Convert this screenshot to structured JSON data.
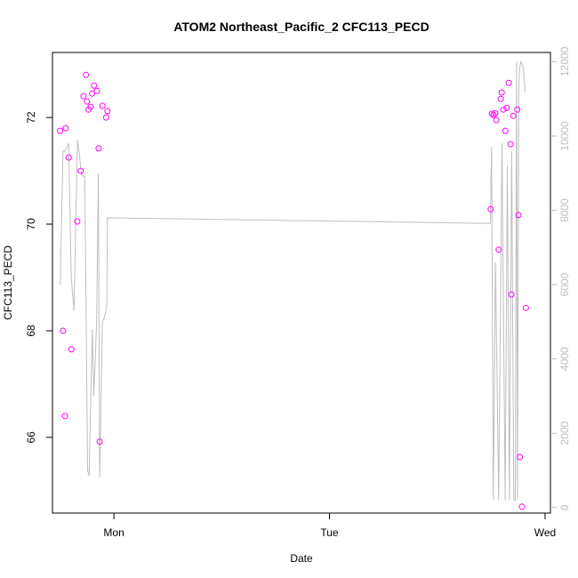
{
  "chart_data": {
    "type": "scatter",
    "title": "ATOM2 Northeast_Pacific_2 CFC113_PECD",
    "xlabel": "Date",
    "ylabel": "CFC113_PECD",
    "x_ticks": [
      "Mon",
      "Tue",
      "Wed"
    ],
    "y_ticks": [
      "66",
      "68",
      "70",
      "72"
    ],
    "y_right_ticks": [
      "0",
      "2000",
      "4000",
      "6000",
      "8000",
      "10000",
      "12000"
    ],
    "xlim": [
      -0.285,
      2.025
    ],
    "ylim": [
      64.58,
      73.22
    ],
    "y_right_lim": [
      -150,
      12250
    ],
    "grid": false,
    "colors": {
      "points": "#ff00ff",
      "line": "#bebebe",
      "axes": "#000000",
      "right_axis": "#bebebe"
    },
    "series": [
      {
        "kind": "points",
        "axis": "left",
        "x": [
          -0.249,
          -0.236,
          -0.227,
          -0.224,
          -0.21,
          -0.197,
          -0.17,
          -0.154,
          -0.141,
          -0.13,
          -0.125,
          -0.118,
          -0.108,
          -0.101,
          -0.092,
          -0.079,
          -0.071,
          -0.066,
          -0.053,
          -0.036,
          -0.03,
          1.748,
          1.753,
          1.761,
          1.769,
          1.774,
          1.785,
          1.795,
          1.799,
          1.807,
          1.816,
          1.822,
          1.832,
          1.84,
          1.844,
          1.853,
          1.871,
          1.877,
          1.883,
          1.893,
          1.911
        ],
        "y": [
          71.75,
          68.0,
          66.4,
          71.8,
          71.25,
          67.65,
          70.05,
          71.0,
          72.4,
          72.8,
          72.3,
          72.15,
          72.2,
          72.45,
          72.6,
          72.5,
          71.42,
          65.92,
          72.22,
          72.0,
          72.12,
          70.28,
          72.07,
          72.05,
          72.08,
          71.95,
          69.52,
          72.35,
          72.47,
          72.15,
          71.75,
          72.18,
          72.65,
          71.5,
          68.68,
          72.03,
          72.15,
          70.17,
          65.63,
          64.7,
          68.43
        ]
      },
      {
        "kind": "line",
        "axis": "right",
        "x": [
          -0.249,
          -0.236,
          -0.226,
          -0.21,
          -0.198,
          -0.185,
          -0.169,
          -0.16,
          -0.15,
          -0.135,
          -0.122,
          -0.115,
          -0.107,
          -0.1,
          -0.093,
          -0.08,
          -0.072,
          -0.066,
          -0.053,
          -0.045,
          -0.037,
          -0.033,
          -0.03,
          1.746,
          1.752,
          1.76,
          1.77,
          1.785,
          1.8,
          1.815,
          1.825,
          1.835,
          1.845,
          1.855,
          1.862,
          1.868,
          1.872,
          1.878,
          1.882,
          1.888,
          1.898,
          1.908
        ],
        "y": [
          6000,
          9600,
          9600,
          9800,
          6200,
          5300,
          9900,
          9500,
          8950,
          8900,
          1000,
          850,
          3000,
          4800,
          3000,
          5000,
          9000,
          800,
          5000,
          5100,
          5300,
          5450,
          7800,
          7650,
          9700,
          200,
          6600,
          200,
          9800,
          200,
          9200,
          200,
          9600,
          200,
          200,
          12000,
          200,
          11200,
          11800,
          12000,
          11900,
          11200
        ]
      }
    ]
  }
}
